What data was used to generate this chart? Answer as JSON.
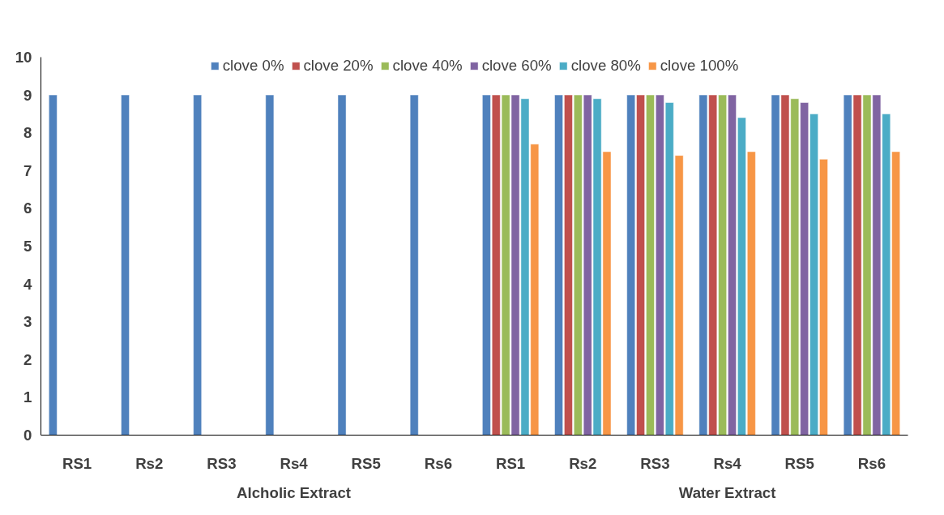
{
  "chart_data": {
    "type": "bar",
    "categories": [
      "RS1",
      "Rs2",
      "RS3",
      "Rs4",
      "RS5",
      "Rs6",
      "RS1",
      "Rs2",
      "RS3",
      "Rs4",
      "RS5",
      "Rs6"
    ],
    "series": [
      {
        "name": "clove 0%",
        "color": "#4f81bd",
        "values": [
          9,
          9,
          9,
          9,
          9,
          9,
          9,
          9,
          9,
          9,
          9,
          9
        ]
      },
      {
        "name": "clove 20%",
        "color": "#c0504d",
        "values": [
          null,
          null,
          null,
          null,
          null,
          null,
          9,
          9,
          9,
          9,
          9,
          9
        ]
      },
      {
        "name": "clove 40%",
        "color": "#9bbb59",
        "values": [
          null,
          null,
          null,
          null,
          null,
          null,
          9,
          9,
          9,
          9,
          8.9,
          9
        ]
      },
      {
        "name": "clove 60%",
        "color": "#8064a2",
        "values": [
          null,
          null,
          null,
          null,
          null,
          null,
          9,
          9,
          9,
          9,
          8.8,
          9
        ]
      },
      {
        "name": "clove 80%",
        "color": "#4bacc6",
        "values": [
          null,
          null,
          null,
          null,
          null,
          null,
          8.9,
          8.9,
          8.8,
          8.4,
          8.5,
          8.5
        ]
      },
      {
        "name": "clove 100%",
        "color": "#f79646",
        "values": [
          null,
          null,
          null,
          null,
          null,
          null,
          7.7,
          7.5,
          7.4,
          7.5,
          7.3,
          7.5
        ]
      }
    ],
    "annotations": [
      "Alcholic Extract",
      "Water Extract"
    ],
    "ylim": [
      0,
      10
    ],
    "yticks": [
      0,
      1,
      2,
      3,
      4,
      5,
      6,
      7,
      8,
      9,
      10
    ],
    "grid": false,
    "legend": "top"
  }
}
